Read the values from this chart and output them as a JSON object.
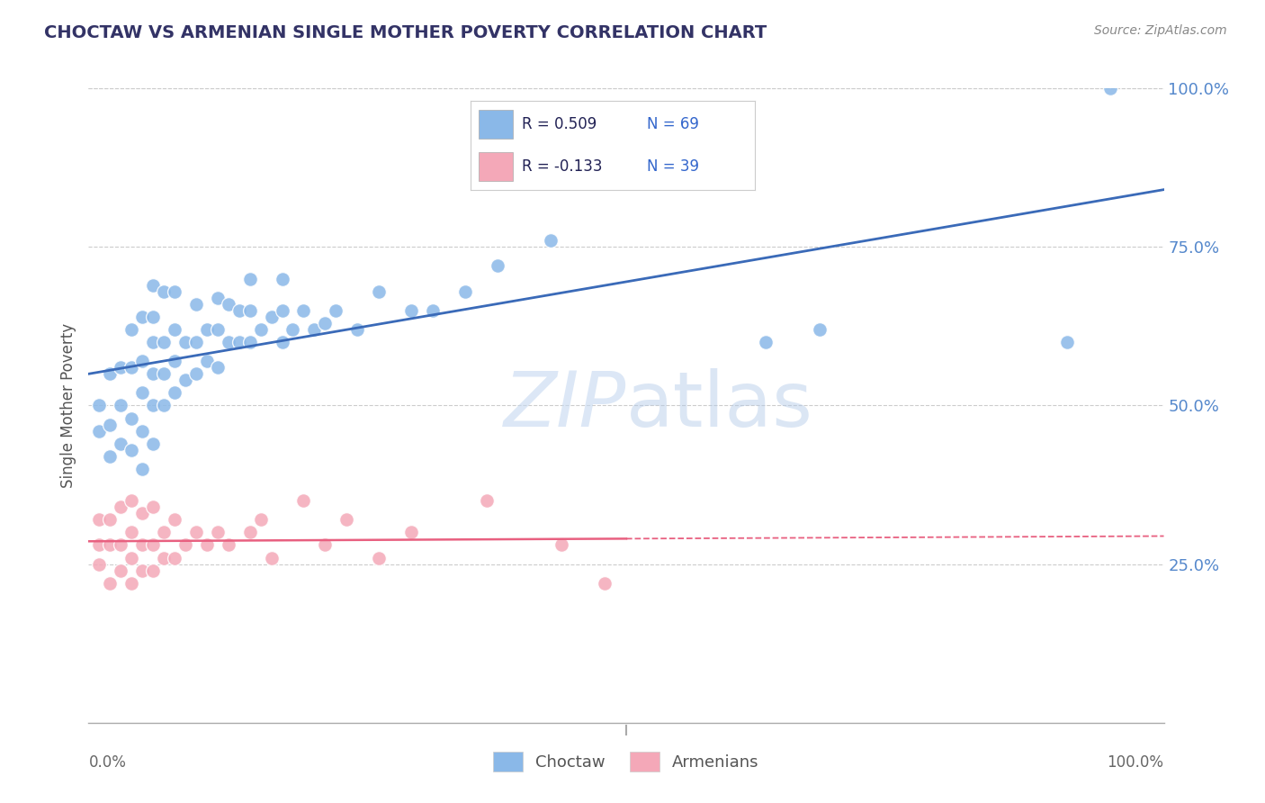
{
  "title": "CHOCTAW VS ARMENIAN SINGLE MOTHER POVERTY CORRELATION CHART",
  "source": "Source: ZipAtlas.com",
  "ylabel": "Single Mother Poverty",
  "ytick_labels": [
    "25.0%",
    "50.0%",
    "75.0%",
    "100.0%"
  ],
  "ytick_values": [
    0.25,
    0.5,
    0.75,
    1.0
  ],
  "watermark": "ZIPatlas",
  "legend_r1": "R = 0.509",
  "legend_n1": "N = 69",
  "legend_r2": "R = -0.133",
  "legend_n2": "N = 39",
  "legend_label1": "Choctaw",
  "legend_label2": "Armenians",
  "choctaw_color": "#8ab8e8",
  "armenian_color": "#f4a8b8",
  "choctaw_line_color": "#3a6ab8",
  "armenian_line_color": "#e86080",
  "background_color": "#ffffff",
  "grid_color": "#cccccc",
  "choctaw_x": [
    0.01,
    0.01,
    0.02,
    0.02,
    0.02,
    0.03,
    0.03,
    0.03,
    0.04,
    0.04,
    0.04,
    0.04,
    0.05,
    0.05,
    0.05,
    0.05,
    0.05,
    0.06,
    0.06,
    0.06,
    0.06,
    0.06,
    0.06,
    0.07,
    0.07,
    0.07,
    0.07,
    0.08,
    0.08,
    0.08,
    0.08,
    0.09,
    0.09,
    0.1,
    0.1,
    0.1,
    0.11,
    0.11,
    0.12,
    0.12,
    0.12,
    0.13,
    0.13,
    0.14,
    0.14,
    0.15,
    0.15,
    0.15,
    0.16,
    0.17,
    0.18,
    0.18,
    0.18,
    0.19,
    0.2,
    0.21,
    0.22,
    0.23,
    0.25,
    0.27,
    0.3,
    0.32,
    0.35,
    0.38,
    0.43,
    0.63,
    0.68,
    0.91,
    0.95
  ],
  "choctaw_y": [
    0.46,
    0.5,
    0.42,
    0.47,
    0.55,
    0.44,
    0.5,
    0.56,
    0.43,
    0.48,
    0.56,
    0.62,
    0.4,
    0.46,
    0.52,
    0.57,
    0.64,
    0.44,
    0.5,
    0.55,
    0.6,
    0.64,
    0.69,
    0.5,
    0.55,
    0.6,
    0.68,
    0.52,
    0.57,
    0.62,
    0.68,
    0.54,
    0.6,
    0.55,
    0.6,
    0.66,
    0.57,
    0.62,
    0.56,
    0.62,
    0.67,
    0.6,
    0.66,
    0.6,
    0.65,
    0.6,
    0.65,
    0.7,
    0.62,
    0.64,
    0.6,
    0.65,
    0.7,
    0.62,
    0.65,
    0.62,
    0.63,
    0.65,
    0.62,
    0.68,
    0.65,
    0.65,
    0.68,
    0.72,
    0.76,
    0.6,
    0.62,
    0.6,
    1.0
  ],
  "armenian_x": [
    0.01,
    0.01,
    0.01,
    0.02,
    0.02,
    0.02,
    0.03,
    0.03,
    0.03,
    0.04,
    0.04,
    0.04,
    0.04,
    0.05,
    0.05,
    0.05,
    0.06,
    0.06,
    0.06,
    0.07,
    0.07,
    0.08,
    0.08,
    0.09,
    0.1,
    0.11,
    0.12,
    0.13,
    0.15,
    0.16,
    0.17,
    0.2,
    0.22,
    0.24,
    0.27,
    0.3,
    0.37,
    0.44,
    0.48
  ],
  "armenian_y": [
    0.25,
    0.28,
    0.32,
    0.22,
    0.28,
    0.32,
    0.24,
    0.28,
    0.34,
    0.22,
    0.26,
    0.3,
    0.35,
    0.24,
    0.28,
    0.33,
    0.24,
    0.28,
    0.34,
    0.26,
    0.3,
    0.26,
    0.32,
    0.28,
    0.3,
    0.28,
    0.3,
    0.28,
    0.3,
    0.32,
    0.26,
    0.35,
    0.28,
    0.32,
    0.26,
    0.3,
    0.35,
    0.28,
    0.22
  ]
}
